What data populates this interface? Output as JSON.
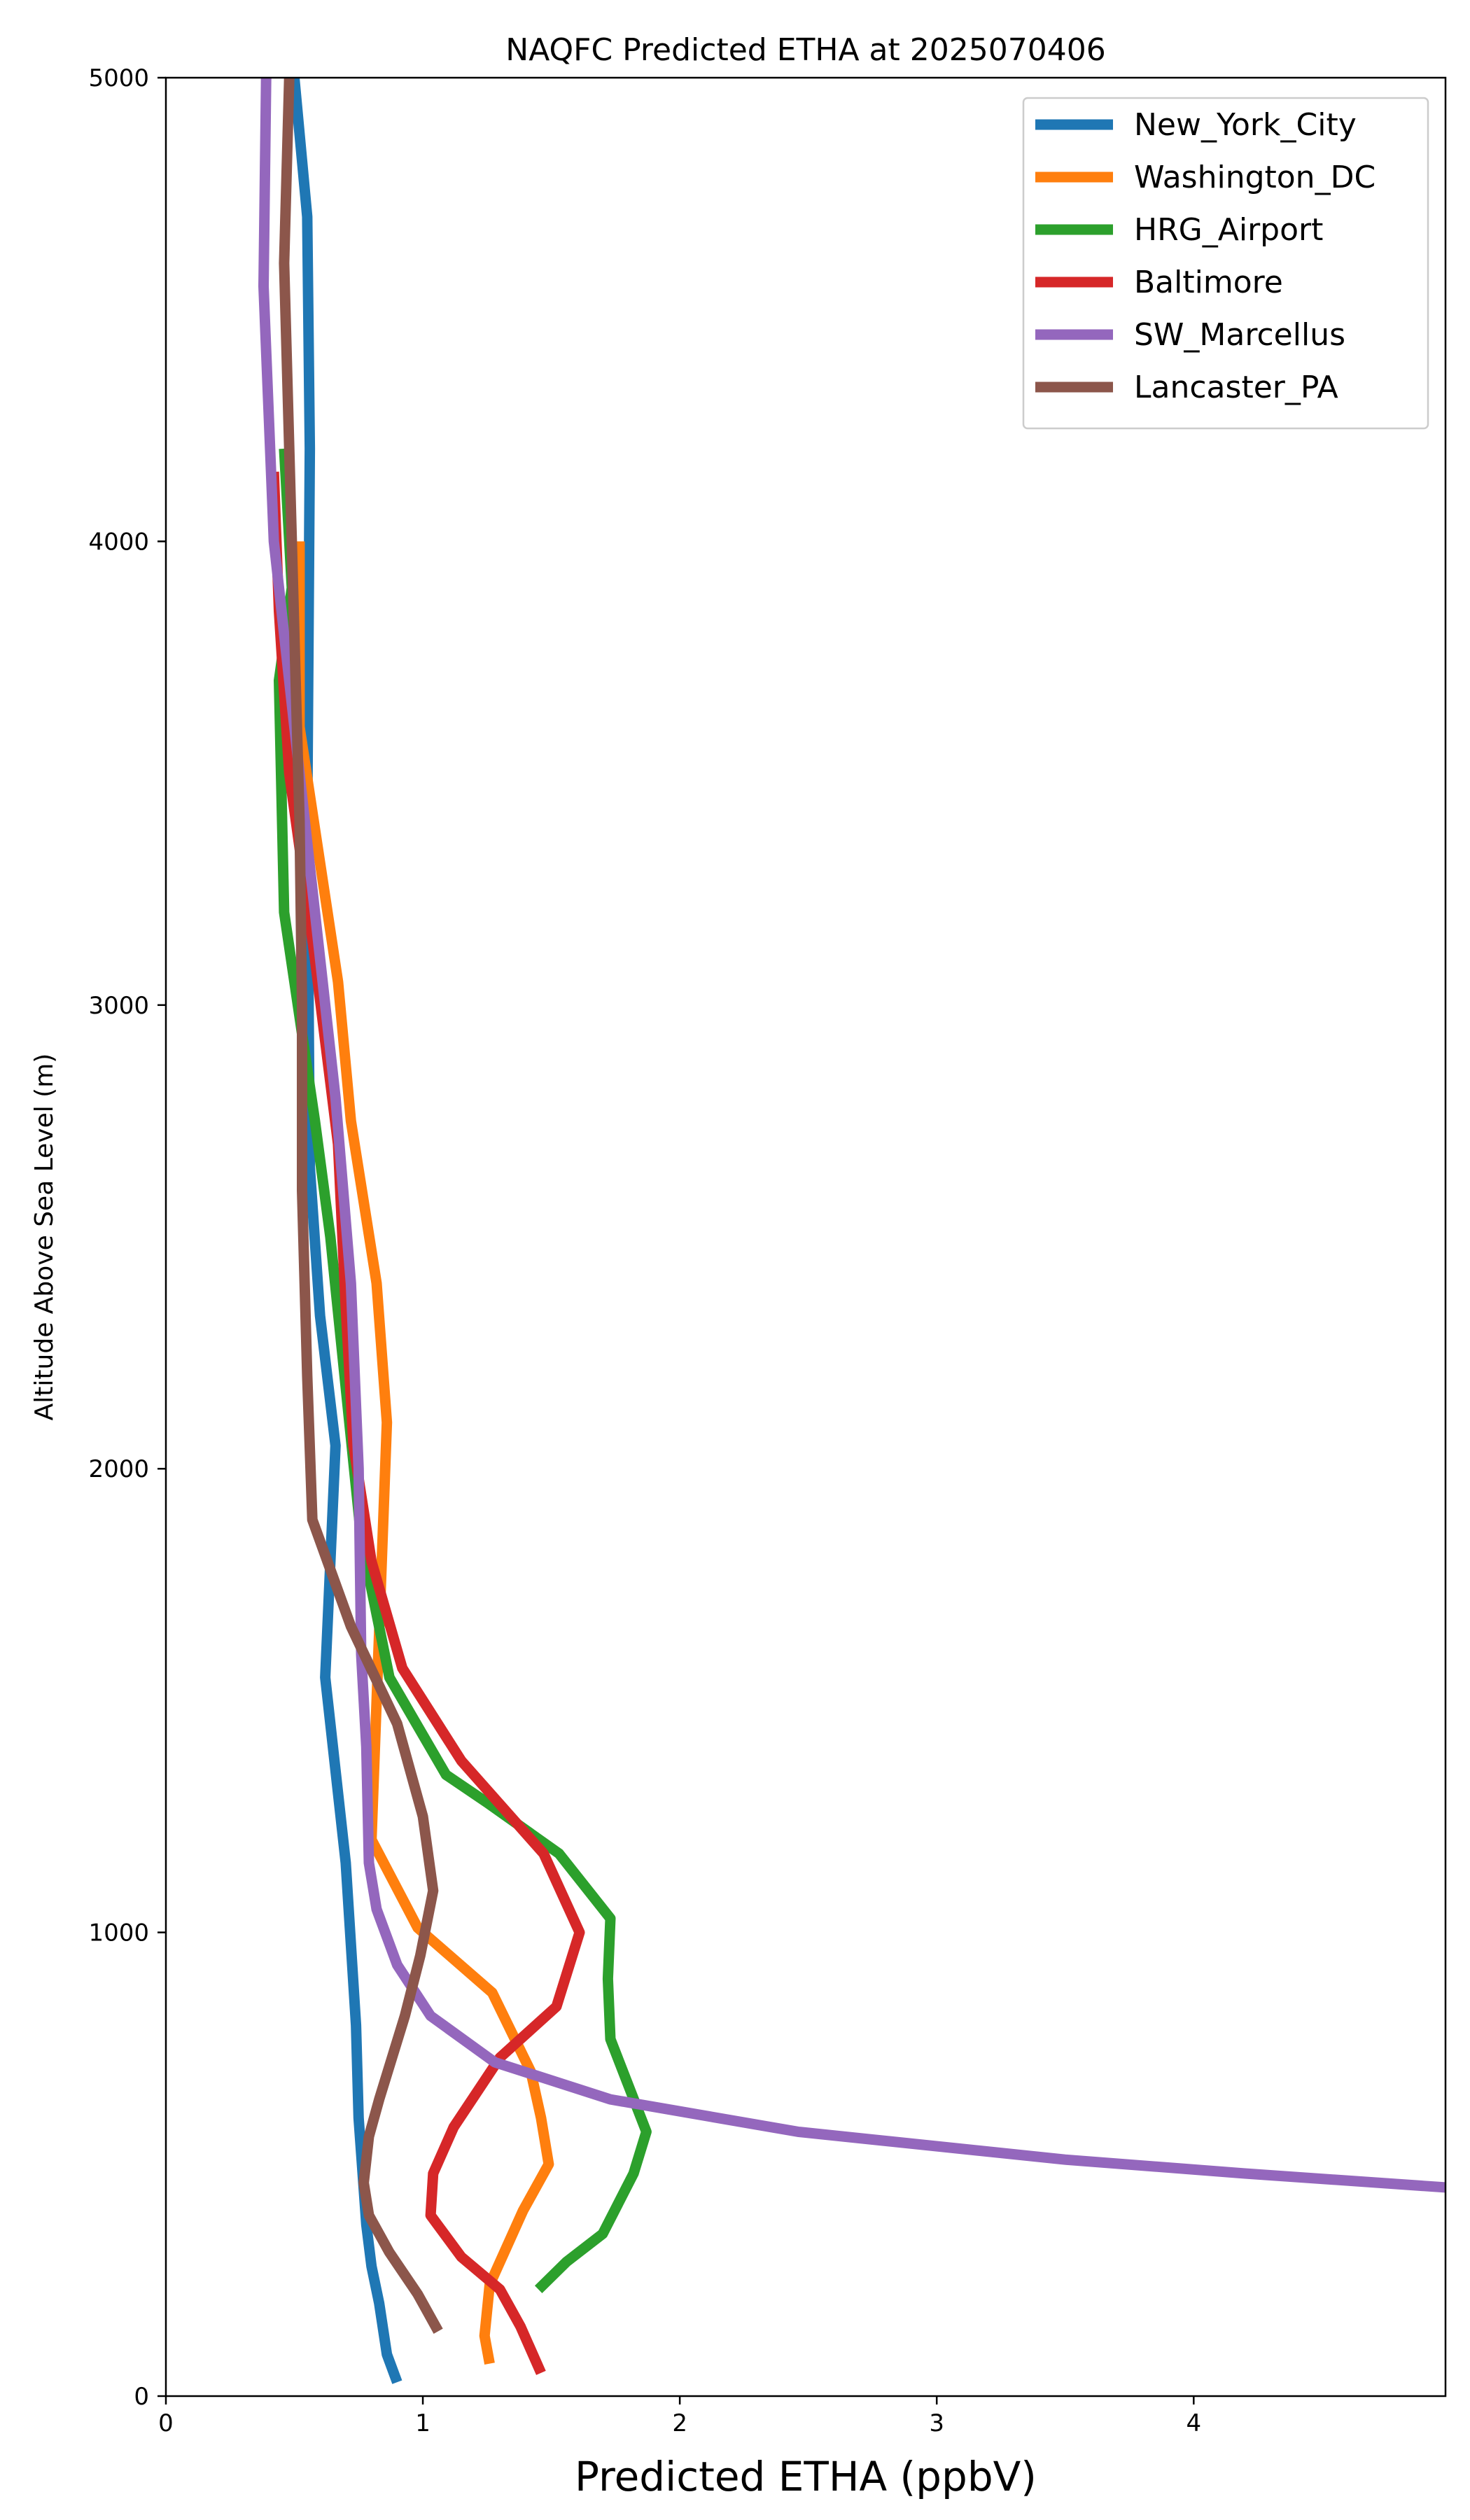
{
  "chart_data": {
    "type": "line",
    "title": "NAQFC Predicted ETHA at 2025070406",
    "xlabel": "Predicted ETHA (ppbV)",
    "ylabel": "Altitude Above Sea Level (m)",
    "xlim": [
      0,
      4.98
    ],
    "ylim": [
      0,
      5000
    ],
    "xticks": [
      0,
      1,
      2,
      3,
      4
    ],
    "yticks": [
      0,
      1000,
      2000,
      3000,
      4000,
      5000
    ],
    "grid": false,
    "legend_position": "top-right",
    "series": [
      {
        "name": "New_York_City",
        "color": "#1f77b4",
        "points": [
          [
            0.9,
            30
          ],
          [
            0.86,
            90
          ],
          [
            0.83,
            200
          ],
          [
            0.8,
            280
          ],
          [
            0.78,
            370
          ],
          [
            0.75,
            600
          ],
          [
            0.74,
            800
          ],
          [
            0.7,
            1150
          ],
          [
            0.62,
            1550
          ],
          [
            0.66,
            2050
          ],
          [
            0.6,
            2330
          ],
          [
            0.56,
            2650
          ],
          [
            0.55,
            3400
          ],
          [
            0.56,
            4200
          ],
          [
            0.55,
            4700
          ],
          [
            0.5,
            5000
          ]
        ]
      },
      {
        "name": "Washington_DC",
        "color": "#ff7f0e",
        "points": [
          [
            1.26,
            70
          ],
          [
            1.24,
            130
          ],
          [
            1.26,
            240
          ],
          [
            1.39,
            400
          ],
          [
            1.49,
            500
          ],
          [
            1.46,
            600
          ],
          [
            1.42,
            700
          ],
          [
            1.27,
            870
          ],
          [
            0.98,
            1010
          ],
          [
            0.8,
            1200
          ],
          [
            0.83,
            1650
          ],
          [
            0.86,
            2100
          ],
          [
            0.82,
            2400
          ],
          [
            0.72,
            2750
          ],
          [
            0.67,
            3050
          ],
          [
            0.52,
            3600
          ],
          [
            0.52,
            4000
          ]
        ]
      },
      {
        "name": "HRG_Airport",
        "color": "#2ca02c",
        "points": [
          [
            1.45,
            230
          ],
          [
            1.56,
            290
          ],
          [
            1.7,
            350
          ],
          [
            1.82,
            480
          ],
          [
            1.87,
            570
          ],
          [
            1.73,
            770
          ],
          [
            1.72,
            900
          ],
          [
            1.73,
            1030
          ],
          [
            1.53,
            1170
          ],
          [
            1.25,
            1280
          ],
          [
            1.09,
            1340
          ],
          [
            0.87,
            1550
          ],
          [
            0.76,
            1850
          ],
          [
            0.64,
            2500
          ],
          [
            0.58,
            2750
          ],
          [
            0.46,
            3200
          ],
          [
            0.44,
            3700
          ],
          [
            0.49,
            3900
          ],
          [
            0.46,
            4200
          ]
        ]
      },
      {
        "name": "Baltimore",
        "color": "#d62728",
        "points": [
          [
            1.46,
            50
          ],
          [
            1.38,
            150
          ],
          [
            1.3,
            230
          ],
          [
            1.15,
            300
          ],
          [
            1.03,
            390
          ],
          [
            1.04,
            480
          ],
          [
            1.12,
            580
          ],
          [
            1.3,
            730
          ],
          [
            1.52,
            840
          ],
          [
            1.61,
            1000
          ],
          [
            1.47,
            1170
          ],
          [
            1.15,
            1370
          ],
          [
            0.92,
            1570
          ],
          [
            0.8,
            1800
          ],
          [
            0.73,
            2050
          ],
          [
            0.7,
            2350
          ],
          [
            0.67,
            2700
          ],
          [
            0.58,
            3100
          ],
          [
            0.48,
            3500
          ],
          [
            0.44,
            3850
          ],
          [
            0.42,
            4150
          ]
        ]
      },
      {
        "name": "SW_Marcellus",
        "color": "#9467bd",
        "points": [
          [
            4.98,
            450
          ],
          [
            4.2,
            480
          ],
          [
            3.5,
            510
          ],
          [
            2.46,
            570
          ],
          [
            1.73,
            640
          ],
          [
            1.28,
            720
          ],
          [
            1.03,
            820
          ],
          [
            0.9,
            930
          ],
          [
            0.82,
            1050
          ],
          [
            0.79,
            1150
          ],
          [
            0.78,
            1400
          ],
          [
            0.76,
            1600
          ],
          [
            0.75,
            2000
          ],
          [
            0.72,
            2400
          ],
          [
            0.66,
            2800
          ],
          [
            0.58,
            3200
          ],
          [
            0.5,
            3600
          ],
          [
            0.42,
            4000
          ],
          [
            0.38,
            4550
          ],
          [
            0.39,
            5000
          ]
        ]
      },
      {
        "name": "Lancaster_PA",
        "color": "#8c564b",
        "points": [
          [
            1.06,
            140
          ],
          [
            0.98,
            220
          ],
          [
            0.87,
            310
          ],
          [
            0.79,
            390
          ],
          [
            0.77,
            460
          ],
          [
            0.79,
            560
          ],
          [
            0.83,
            640
          ],
          [
            0.93,
            820
          ],
          [
            0.99,
            950
          ],
          [
            1.04,
            1090
          ],
          [
            1.0,
            1250
          ],
          [
            0.9,
            1450
          ],
          [
            0.72,
            1660
          ],
          [
            0.57,
            1890
          ],
          [
            0.55,
            2200
          ],
          [
            0.53,
            2600
          ],
          [
            0.53,
            3000
          ],
          [
            0.52,
            3400
          ],
          [
            0.5,
            3800
          ],
          [
            0.48,
            4200
          ],
          [
            0.46,
            4600
          ],
          [
            0.48,
            5000
          ]
        ]
      }
    ]
  }
}
